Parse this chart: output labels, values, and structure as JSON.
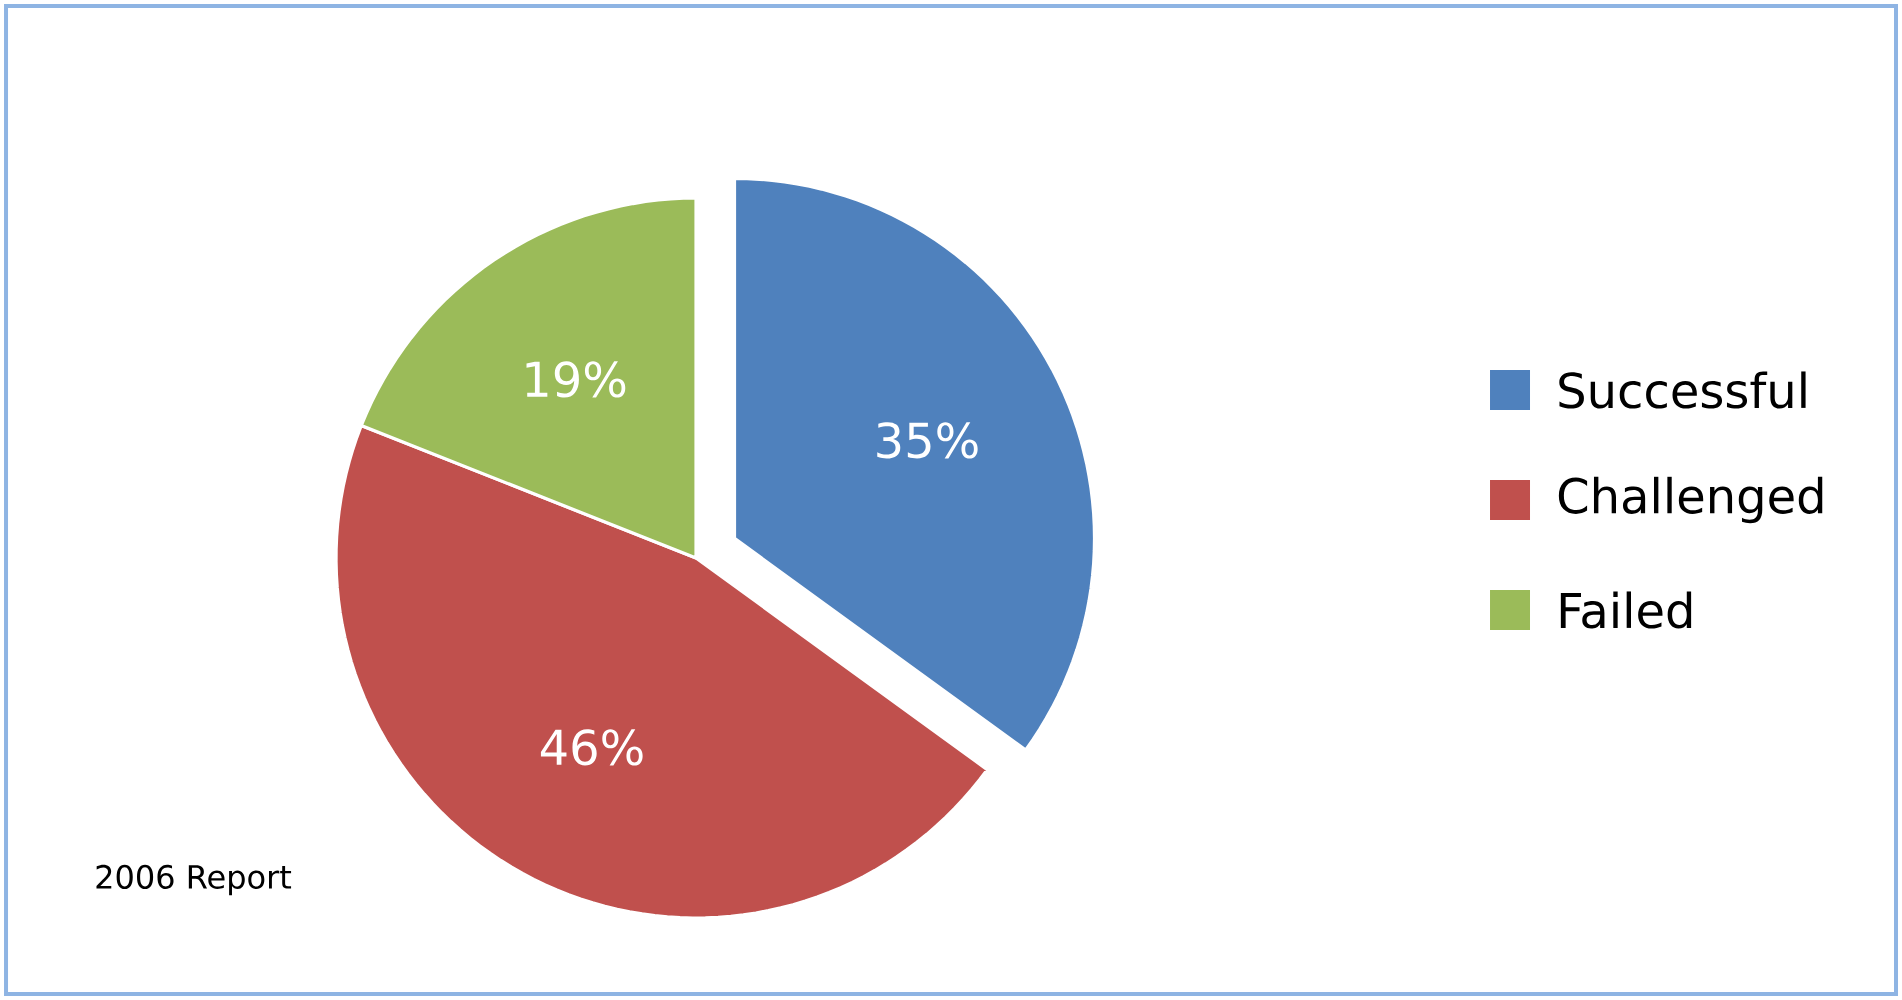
{
  "chart_data": {
    "type": "pie",
    "categories": [
      "Successful",
      "Challenged",
      "Failed"
    ],
    "values": [
      35,
      46,
      19
    ],
    "colors": [
      "#4f81bd",
      "#c0504d",
      "#9bbb59"
    ],
    "value_labels": [
      "35%",
      "46%",
      "19%"
    ],
    "legend": "right",
    "annotations": [
      "2006 Report"
    ]
  }
}
